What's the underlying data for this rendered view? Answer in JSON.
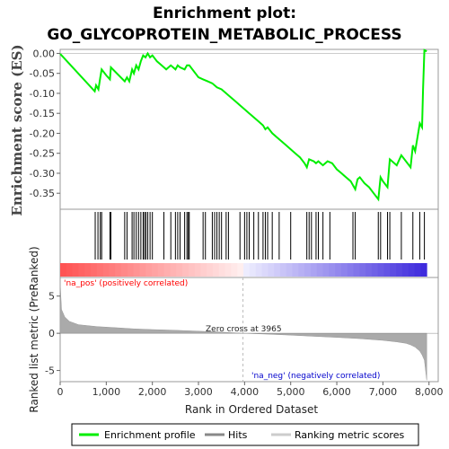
{
  "chart_data": {
    "type": "line",
    "title_line1": "Enrichment plot:",
    "title_line2": "GO_GLYCOPROTEIN_METABOLIC_PROCESS",
    "es_panel": {
      "ylabel": "Enrichment score (ES)",
      "ylim": [
        -0.39,
        0.01
      ],
      "yticks": [
        "0.00",
        "-0.05",
        "-0.10",
        "-0.15",
        "-0.20",
        "-0.25",
        "-0.30",
        "-0.35"
      ],
      "ytick_values": [
        0.0,
        -0.05,
        -0.1,
        -0.15,
        -0.2,
        -0.25,
        -0.3,
        -0.35
      ],
      "series": {
        "name": "Enrichment profile",
        "color": "#00ee00",
        "x": [
          0,
          750,
          780,
          830,
          870,
          900,
          1000,
          1080,
          1100,
          1400,
          1450,
          1500,
          1560,
          1600,
          1650,
          1700,
          1750,
          1800,
          1850,
          1900,
          1950,
          2000,
          2100,
          2200,
          2300,
          2400,
          2500,
          2550,
          2600,
          2700,
          2750,
          2800,
          3000,
          3100,
          3200,
          3300,
          3400,
          3500,
          3600,
          3700,
          3800,
          3900,
          4000,
          4100,
          4200,
          4300,
          4400,
          4450,
          4500,
          4600,
          4700,
          4800,
          4900,
          5000,
          5100,
          5200,
          5300,
          5350,
          5400,
          5500,
          5550,
          5600,
          5700,
          5800,
          5900,
          6000,
          6100,
          6200,
          6300,
          6400,
          6450,
          6500,
          6600,
          6700,
          6800,
          6900,
          6950,
          7000,
          7100,
          7150,
          7300,
          7400,
          7500,
          7600,
          7650,
          7700,
          7800,
          7850,
          7870,
          7900,
          7950
        ],
        "y": [
          -0.001,
          -0.095,
          -0.08,
          -0.09,
          -0.06,
          -0.04,
          -0.055,
          -0.065,
          -0.035,
          -0.07,
          -0.06,
          -0.07,
          -0.04,
          -0.05,
          -0.03,
          -0.04,
          -0.02,
          -0.005,
          -0.01,
          0.0,
          -0.01,
          -0.005,
          -0.02,
          -0.03,
          -0.04,
          -0.03,
          -0.04,
          -0.03,
          -0.035,
          -0.04,
          -0.03,
          -0.03,
          -0.06,
          -0.065,
          -0.07,
          -0.075,
          -0.085,
          -0.09,
          -0.1,
          -0.11,
          -0.12,
          -0.13,
          -0.14,
          -0.15,
          -0.16,
          -0.17,
          -0.18,
          -0.19,
          -0.185,
          -0.2,
          -0.21,
          -0.22,
          -0.23,
          -0.24,
          -0.25,
          -0.26,
          -0.275,
          -0.285,
          -0.265,
          -0.27,
          -0.275,
          -0.27,
          -0.28,
          -0.27,
          -0.275,
          -0.29,
          -0.3,
          -0.31,
          -0.32,
          -0.34,
          -0.315,
          -0.31,
          -0.325,
          -0.335,
          -0.35,
          -0.365,
          -0.31,
          -0.32,
          -0.335,
          -0.265,
          -0.28,
          -0.255,
          -0.27,
          -0.285,
          -0.23,
          -0.245,
          -0.175,
          -0.185,
          -0.09,
          0.008,
          0.005
        ]
      }
    },
    "hits": {
      "name": "Hits",
      "positions": [
        760,
        820,
        870,
        900,
        1080,
        1100,
        1400,
        1450,
        1560,
        1600,
        1650,
        1700,
        1750,
        1800,
        1830,
        1860,
        1900,
        1950,
        2000,
        2250,
        2400,
        2500,
        2550,
        2600,
        2700,
        2750,
        2780,
        2800,
        3100,
        3150,
        3300,
        3350,
        3400,
        3450,
        3500,
        3600,
        3650,
        3900,
        4000,
        4050,
        4100,
        4200,
        4300,
        4400,
        4450,
        4500,
        4600,
        4750,
        5000,
        5350,
        5400,
        5450,
        5550,
        5600,
        5700,
        5850,
        6350,
        6400,
        6900,
        6950,
        7100,
        7150,
        7400,
        7650,
        7800,
        7900
      ]
    },
    "metric_panel": {
      "ylabel": "Ranked list metric (PreRanked)",
      "ylim": [
        -6.5,
        7.5
      ],
      "yticks": [
        "5",
        "0",
        "-5"
      ],
      "ytick_values": [
        5,
        0,
        -5
      ],
      "series_name": "Ranking metric scores",
      "color": "#aaaaaa",
      "x": [
        0,
        30,
        100,
        200,
        400,
        800,
        1200,
        1600,
        2000,
        2500,
        3000,
        3500,
        3965,
        4500,
        5000,
        5500,
        6000,
        6500,
        7000,
        7300,
        7500,
        7600,
        7700,
        7800,
        7850,
        7900,
        7950
      ],
      "y": [
        6.8,
        3.2,
        2.2,
        1.6,
        1.15,
        0.9,
        0.75,
        0.6,
        0.5,
        0.4,
        0.28,
        0.15,
        0.0,
        -0.12,
        -0.25,
        -0.4,
        -0.55,
        -0.72,
        -0.95,
        -1.15,
        -1.35,
        -1.55,
        -1.85,
        -2.4,
        -2.9,
        -3.6,
        -6.3
      ]
    },
    "x_axis": {
      "label": "Rank in Ordered Dataset",
      "xlim": [
        0,
        8200
      ],
      "ticks": [
        "0",
        "1,000",
        "2,000",
        "3,000",
        "4,000",
        "5,000",
        "6,000",
        "7,000",
        "8,000"
      ],
      "tick_values": [
        0,
        1000,
        2000,
        3000,
        4000,
        5000,
        6000,
        7000,
        8000
      ]
    },
    "annotations": {
      "pos_label": "'na_pos' (positively correlated)",
      "neg_label": "'na_neg' (negatively correlated)",
      "zero_cross": "Zero cross at 3965",
      "zero_cross_value": 3965
    },
    "colors": {
      "pos_label": "#ff0000",
      "neg_label": "#0000cc",
      "zero_line": "#bbbbbb"
    },
    "legend": {
      "placement": "bottom",
      "entries": [
        "Enrichment profile",
        "Hits",
        "Ranking metric scores"
      ]
    }
  }
}
